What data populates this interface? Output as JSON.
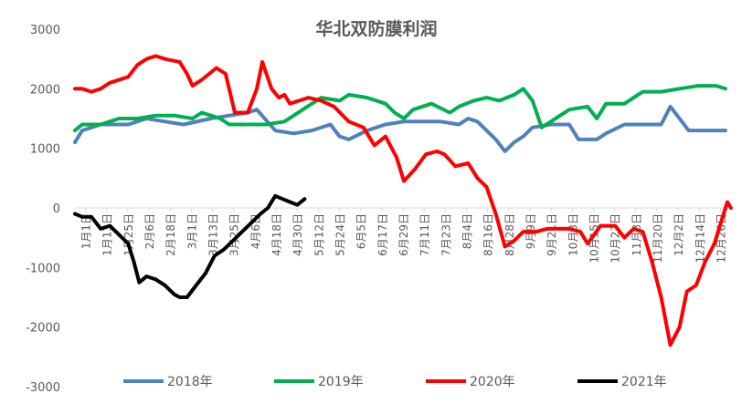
{
  "chart_data": {
    "type": "line",
    "title": "华北双防膜利润",
    "ylim": [
      -3000,
      3000
    ],
    "yticks": [
      3000,
      2000,
      1000,
      0,
      -1000,
      -2000,
      -3000
    ],
    "grid": false,
    "legend_position": "bottom",
    "x_tick_labels": [
      "1月1日",
      "1月13日",
      "1月25日",
      "2月6日",
      "2月18日",
      "3月1日",
      "3月13日",
      "3月25日",
      "4月6日",
      "4月18日",
      "4月30日",
      "5月12日",
      "5月24日",
      "6月5日",
      "6月17日",
      "6月29日",
      "7月11日",
      "7月23日",
      "8月4日",
      "8月16日",
      "8月28日",
      "9月9日",
      "9月21日",
      "10月3日",
      "10月15日",
      "10月27日",
      "11月8日",
      "11月20日",
      "12月2日",
      "12月14日",
      "12月26日"
    ],
    "series": [
      {
        "name": "2018年",
        "color": "#4f81bd",
        "points": [
          [
            1,
            1100
          ],
          [
            5,
            1300
          ],
          [
            15,
            1400
          ],
          [
            30,
            1400
          ],
          [
            40,
            1500
          ],
          [
            50,
            1450
          ],
          [
            60,
            1400
          ],
          [
            75,
            1500
          ],
          [
            85,
            1550
          ],
          [
            95,
            1600
          ],
          [
            100,
            1650
          ],
          [
            110,
            1300
          ],
          [
            120,
            1250
          ],
          [
            130,
            1300
          ],
          [
            140,
            1400
          ],
          [
            145,
            1200
          ],
          [
            150,
            1150
          ],
          [
            160,
            1300
          ],
          [
            170,
            1400
          ],
          [
            180,
            1450
          ],
          [
            190,
            1450
          ],
          [
            200,
            1450
          ],
          [
            210,
            1400
          ],
          [
            215,
            1500
          ],
          [
            220,
            1450
          ],
          [
            225,
            1300
          ],
          [
            230,
            1150
          ],
          [
            235,
            950
          ],
          [
            240,
            1100
          ],
          [
            245,
            1200
          ],
          [
            250,
            1350
          ],
          [
            260,
            1400
          ],
          [
            270,
            1400
          ],
          [
            275,
            1150
          ],
          [
            285,
            1150
          ],
          [
            290,
            1250
          ],
          [
            300,
            1400
          ],
          [
            310,
            1400
          ],
          [
            320,
            1400
          ],
          [
            325,
            1700
          ],
          [
            330,
            1500
          ],
          [
            335,
            1300
          ],
          [
            345,
            1300
          ],
          [
            355,
            1300
          ]
        ]
      },
      {
        "name": "2019年",
        "color": "#00b050",
        "points": [
          [
            1,
            1300
          ],
          [
            5,
            1400
          ],
          [
            15,
            1400
          ],
          [
            25,
            1500
          ],
          [
            35,
            1500
          ],
          [
            45,
            1550
          ],
          [
            55,
            1550
          ],
          [
            65,
            1500
          ],
          [
            70,
            1600
          ],
          [
            75,
            1550
          ],
          [
            80,
            1500
          ],
          [
            85,
            1400
          ],
          [
            95,
            1400
          ],
          [
            105,
            1400
          ],
          [
            115,
            1450
          ],
          [
            125,
            1650
          ],
          [
            135,
            1850
          ],
          [
            145,
            1800
          ],
          [
            150,
            1900
          ],
          [
            160,
            1850
          ],
          [
            170,
            1750
          ],
          [
            175,
            1600
          ],
          [
            180,
            1500
          ],
          [
            185,
            1650
          ],
          [
            195,
            1750
          ],
          [
            205,
            1600
          ],
          [
            210,
            1700
          ],
          [
            218,
            1800
          ],
          [
            225,
            1850
          ],
          [
            232,
            1800
          ],
          [
            240,
            1900
          ],
          [
            245,
            2000
          ],
          [
            250,
            1800
          ],
          [
            255,
            1350
          ],
          [
            260,
            1450
          ],
          [
            270,
            1650
          ],
          [
            280,
            1700
          ],
          [
            285,
            1500
          ],
          [
            290,
            1750
          ],
          [
            300,
            1750
          ],
          [
            310,
            1950
          ],
          [
            320,
            1950
          ],
          [
            330,
            2000
          ],
          [
            340,
            2050
          ],
          [
            350,
            2050
          ],
          [
            355,
            2000
          ]
        ]
      },
      {
        "name": "2020年",
        "color": "#ff0000",
        "points": [
          [
            1,
            2000
          ],
          [
            5,
            2000
          ],
          [
            10,
            1950
          ],
          [
            15,
            2000
          ],
          [
            20,
            2100
          ],
          [
            30,
            2200
          ],
          [
            35,
            2400
          ],
          [
            40,
            2500
          ],
          [
            45,
            2550
          ],
          [
            50,
            2500
          ],
          [
            58,
            2450
          ],
          [
            62,
            2250
          ],
          [
            65,
            2050
          ],
          [
            70,
            2150
          ],
          [
            78,
            2350
          ],
          [
            83,
            2250
          ],
          [
            88,
            1600
          ],
          [
            95,
            1600
          ],
          [
            100,
            2000
          ],
          [
            103,
            2450
          ],
          [
            108,
            2000
          ],
          [
            112,
            1850
          ],
          [
            115,
            1900
          ],
          [
            118,
            1750
          ],
          [
            123,
            1800
          ],
          [
            128,
            1850
          ],
          [
            135,
            1800
          ],
          [
            142,
            1700
          ],
          [
            150,
            1450
          ],
          [
            158,
            1350
          ],
          [
            164,
            1050
          ],
          [
            170,
            1200
          ],
          [
            176,
            850
          ],
          [
            180,
            450
          ],
          [
            186,
            650
          ],
          [
            192,
            900
          ],
          [
            198,
            950
          ],
          [
            202,
            900
          ],
          [
            208,
            700
          ],
          [
            215,
            750
          ],
          [
            220,
            500
          ],
          [
            225,
            350
          ],
          [
            230,
            -100
          ],
          [
            235,
            -650
          ],
          [
            240,
            -550
          ],
          [
            245,
            -400
          ],
          [
            252,
            -400
          ],
          [
            258,
            -350
          ],
          [
            265,
            -350
          ],
          [
            270,
            -350
          ],
          [
            276,
            -400
          ],
          [
            280,
            -600
          ],
          [
            287,
            -300
          ],
          [
            295,
            -300
          ],
          [
            300,
            -500
          ],
          [
            305,
            -350
          ],
          [
            310,
            -400
          ],
          [
            315,
            -900
          ],
          [
            320,
            -1500
          ],
          [
            325,
            -2300
          ],
          [
            330,
            -2000
          ],
          [
            334,
            -1400
          ],
          [
            339,
            -1300
          ],
          [
            344,
            -900
          ],
          [
            349,
            -600
          ],
          [
            353,
            -200
          ],
          [
            356,
            100
          ],
          [
            358,
            0
          ]
        ]
      },
      {
        "name": "2021年",
        "color": "#000000",
        "points": [
          [
            1,
            -100
          ],
          [
            5,
            -150
          ],
          [
            10,
            -150
          ],
          [
            15,
            -350
          ],
          [
            20,
            -300
          ],
          [
            25,
            -450
          ],
          [
            30,
            -600
          ],
          [
            33,
            -900
          ],
          [
            36,
            -1250
          ],
          [
            40,
            -1150
          ],
          [
            45,
            -1200
          ],
          [
            50,
            -1300
          ],
          [
            55,
            -1450
          ],
          [
            58,
            -1500
          ],
          [
            62,
            -1500
          ],
          [
            67,
            -1300
          ],
          [
            72,
            -1100
          ],
          [
            77,
            -800
          ],
          [
            82,
            -700
          ],
          [
            87,
            -550
          ],
          [
            92,
            -400
          ],
          [
            97,
            -250
          ],
          [
            102,
            -100
          ],
          [
            106,
            0
          ],
          [
            110,
            200
          ],
          [
            114,
            150
          ],
          [
            118,
            100
          ],
          [
            122,
            50
          ],
          [
            126,
            150
          ]
        ]
      }
    ]
  }
}
